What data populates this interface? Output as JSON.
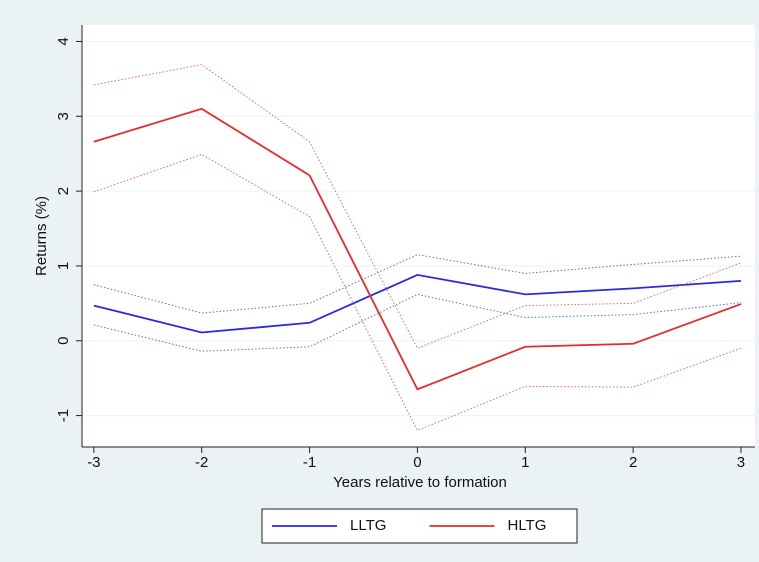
{
  "chart_data": {
    "type": "line",
    "y_label": "Returns (%)",
    "x_label": "Years relative to formation",
    "x": [
      -3,
      -2,
      -1,
      0,
      1,
      2,
      3
    ],
    "xlim": [
      -3.11,
      3.13
    ],
    "xticks": [
      -3,
      -2,
      -1,
      0,
      1,
      2,
      3
    ],
    "ylim": [
      -1.42,
      4.22
    ],
    "yticks": [
      -1,
      0,
      1,
      2,
      3,
      4
    ],
    "grid": true,
    "legend": "bottom",
    "series": [
      {
        "name": "LLTG",
        "color": "#2a2ae0",
        "values": [
          0.47,
          0.11,
          0.24,
          0.88,
          0.62,
          0.7,
          0.8
        ],
        "upper": [
          0.75,
          0.37,
          0.5,
          1.15,
          0.9,
          1.02,
          1.13
        ],
        "lower": [
          0.21,
          -0.14,
          -0.08,
          0.62,
          0.31,
          0.35,
          0.51
        ]
      },
      {
        "name": "HLTG",
        "color": "#e82a2a",
        "values": [
          2.66,
          3.1,
          2.21,
          -0.65,
          -0.08,
          -0.04,
          0.49
        ],
        "upper": [
          3.42,
          3.69,
          2.66,
          -0.1,
          0.47,
          0.5,
          1.04
        ],
        "lower": [
          1.99,
          2.49,
          1.66,
          -1.2,
          -0.61,
          -0.62,
          -0.1
        ]
      }
    ]
  }
}
